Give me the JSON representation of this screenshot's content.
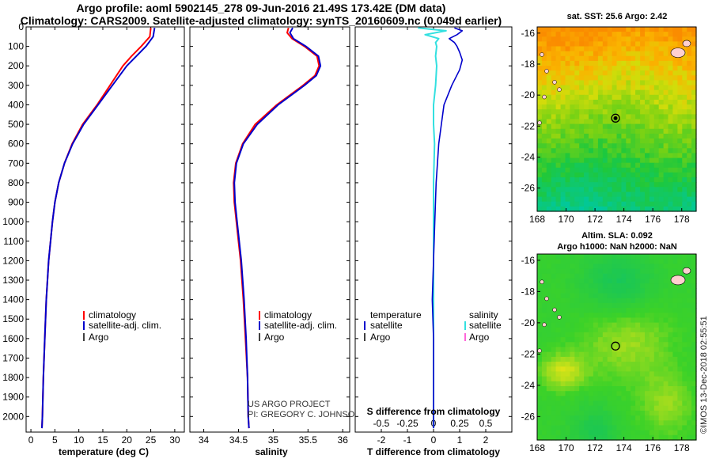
{
  "header": {
    "title_line1": "Argo profile: aoml 5902145_278 09-Jun-2016 21.49S 173.42E (DM data)",
    "title_line2": "Climatology: CARS2009. Satellite-adjusted climatology: synTS_20160609.nc (0.049d earlier)"
  },
  "credit": {
    "line1": "US ARGO PROJECT",
    "line2": "PI: GREGORY C. JOHNSON"
  },
  "stamp": "©IMOS 13-Dec-2018 02:55:51",
  "colors": {
    "climatology": "#ff0000",
    "satellite": "#0000cc",
    "argo": "#000000",
    "sal_satellite": "#33e0e0",
    "sal_argo": "#ff33cc"
  },
  "chart_data": [
    {
      "type": "line",
      "id": "temperature",
      "xlabel": "temperature (deg C)",
      "ylabel": "",
      "xlim": [
        -1,
        32
      ],
      "ylim": [
        2080,
        0
      ],
      "xticks": [
        0,
        5,
        10,
        15,
        20,
        25,
        30
      ],
      "yticks": [
        0,
        100,
        200,
        300,
        400,
        500,
        600,
        700,
        800,
        900,
        1000,
        1100,
        1200,
        1300,
        1400,
        1500,
        1600,
        1700,
        1800,
        1900,
        2000
      ],
      "legend": [
        "climatology",
        "satellite-adj. clim.",
        "Argo"
      ],
      "series": [
        {
          "name": "climatology",
          "depth": [
            5,
            50,
            100,
            150,
            200,
            300,
            400,
            500,
            600,
            700,
            800,
            900,
            1000,
            1200,
            1400,
            1600,
            1800,
            2000,
            2060
          ],
          "values": [
            25.0,
            24.8,
            23.0,
            21.0,
            19.2,
            16.5,
            13.8,
            10.8,
            8.6,
            7.0,
            5.8,
            5.0,
            4.5,
            3.7,
            3.2,
            2.9,
            2.6,
            2.4,
            2.3
          ]
        },
        {
          "name": "satellite-adj. clim.",
          "depth": [
            5,
            50,
            100,
            150,
            200,
            300,
            400,
            500,
            600,
            700,
            800,
            900,
            1000,
            1200,
            1400,
            1600,
            1800,
            2000,
            2060
          ],
          "values": [
            25.8,
            25.5,
            24.0,
            22.0,
            20.0,
            17.0,
            14.0,
            11.0,
            8.7,
            7.0,
            5.8,
            5.0,
            4.5,
            3.7,
            3.2,
            2.9,
            2.6,
            2.4,
            2.3
          ]
        }
      ]
    },
    {
      "type": "line",
      "id": "salinity",
      "xlabel": "salinity",
      "xlim": [
        33.8,
        36.1
      ],
      "ylim": [
        2080,
        0
      ],
      "xticks": [
        34,
        34.5,
        35,
        35.5,
        36
      ],
      "legend": [
        "climatology",
        "satellite-adj. clim.",
        "Argo"
      ],
      "series": [
        {
          "name": "climatology",
          "depth": [
            5,
            30,
            60,
            100,
            150,
            200,
            250,
            300,
            400,
            500,
            600,
            700,
            800,
            900,
            1000,
            1200,
            1400,
            1600,
            1800,
            2000,
            2060
          ],
          "values": [
            35.22,
            35.2,
            35.27,
            35.45,
            35.63,
            35.66,
            35.6,
            35.43,
            35.05,
            34.74,
            34.56,
            34.46,
            34.43,
            34.44,
            34.47,
            34.53,
            34.57,
            34.6,
            34.63,
            34.64,
            34.65
          ]
        },
        {
          "name": "satellite-adj. clim.",
          "depth": [
            5,
            30,
            60,
            100,
            150,
            200,
            250,
            300,
            400,
            500,
            600,
            700,
            800,
            900,
            1000,
            1200,
            1400,
            1600,
            1800,
            2000,
            2060
          ],
          "values": [
            35.28,
            35.24,
            35.29,
            35.47,
            35.65,
            35.68,
            35.62,
            35.45,
            35.07,
            34.77,
            34.57,
            34.47,
            34.44,
            34.45,
            34.48,
            34.54,
            34.58,
            34.61,
            34.63,
            34.64,
            34.65
          ]
        }
      ]
    },
    {
      "type": "line",
      "id": "difference",
      "xlabel": "T difference from climatology",
      "x2label": "S difference from climatology",
      "xlim": [
        -3,
        3
      ],
      "ylim": [
        2080,
        0
      ],
      "xticks": [
        -2,
        -1,
        0,
        1,
        2
      ],
      "x2ticks": [
        -0.5,
        -0.25,
        0,
        0.25,
        0.5
      ],
      "legend_temperature_title": "temperature",
      "legend_salinity_title": "salinity",
      "legend_temperature": [
        "satellite",
        "Argo"
      ],
      "legend_salinity": [
        "satellite",
        "Argo"
      ],
      "series": [
        {
          "name": "T satellite",
          "depth": [
            5,
            20,
            40,
            60,
            80,
            100,
            130,
            170,
            220,
            300,
            400,
            500,
            600,
            800,
            1000,
            1200,
            1400,
            1600,
            2000,
            2060
          ],
          "values": [
            0.8,
            1.1,
            0.9,
            0.6,
            0.8,
            0.9,
            1.0,
            1.1,
            1.0,
            0.7,
            0.4,
            0.3,
            0.2,
            0.1,
            0.05,
            0.0,
            -0.05,
            0.0,
            0.0,
            0.0
          ]
        },
        {
          "name": "S satellite",
          "depth": [
            5,
            20,
            40,
            60,
            80,
            100,
            150,
            200,
            300,
            400,
            500,
            600,
            800,
            1000,
            1200,
            1400,
            1600,
            2000,
            2060
          ],
          "values": [
            -0.15,
            0.12,
            -0.08,
            0.05,
            0.02,
            0.03,
            0.02,
            0.03,
            0.02,
            0.0,
            0.0,
            0.01,
            0.0,
            0.0,
            0.0,
            0.0,
            0.0,
            0.0,
            0.0
          ]
        }
      ]
    },
    {
      "type": "heatmap",
      "id": "sst-map",
      "title": "sat. SST: 25.6 Argo: 2.42",
      "xticks": [
        168,
        170,
        172,
        174,
        176,
        178
      ],
      "yticks": [
        -16,
        -18,
        -20,
        -22,
        -24,
        -26
      ],
      "xlim": [
        168,
        179
      ],
      "ylim": [
        -27.5,
        -15.6
      ],
      "float_position": [
        173.42,
        -21.49
      ]
    },
    {
      "type": "heatmap",
      "id": "sla-map",
      "title_line1": "Altim. SLA: 0.092",
      "title_line2": "Argo h1000: NaN h2000: NaN",
      "xticks": [
        168,
        170,
        172,
        174,
        176,
        178
      ],
      "yticks": [
        -16,
        -18,
        -20,
        -22,
        -24,
        -26
      ],
      "xlim": [
        168,
        179
      ],
      "ylim": [
        -27.5,
        -15.6
      ],
      "float_position": [
        173.42,
        -21.49
      ]
    }
  ]
}
